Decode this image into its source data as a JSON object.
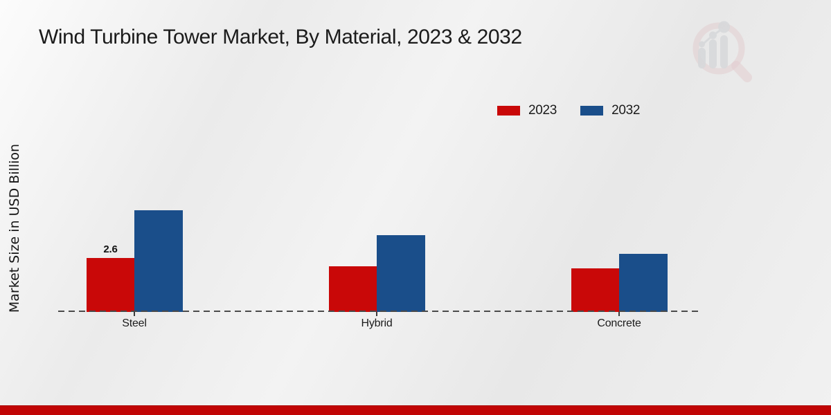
{
  "watermark": {
    "name": "market-research-future-logo"
  },
  "footer": {
    "accent_color": "#c10505"
  },
  "chart_data": {
    "type": "bar",
    "title": "Wind Turbine Tower Market, By Material, 2023 & 2032",
    "ylabel": "Market Size in USD Billion",
    "xlabel": "",
    "categories": [
      "Steel",
      "Hybrid",
      "Concrete"
    ],
    "series": [
      {
        "name": "2023",
        "color": "#c90808",
        "values": [
          2.6,
          2.2,
          2.1
        ],
        "value_labels": [
          "2.6",
          "",
          ""
        ]
      },
      {
        "name": "2032",
        "color": "#1a4e8a",
        "values": [
          4.9,
          3.7,
          2.8
        ],
        "value_labels": [
          "",
          "",
          ""
        ]
      }
    ],
    "ylim": [
      0,
      5
    ],
    "grid": false,
    "y_axis_ticks_visible": false,
    "legend_position": "top-right",
    "baseline_style": "dashed",
    "annotations": [
      {
        "text": "2.6",
        "target": "Steel 2023"
      }
    ]
  }
}
